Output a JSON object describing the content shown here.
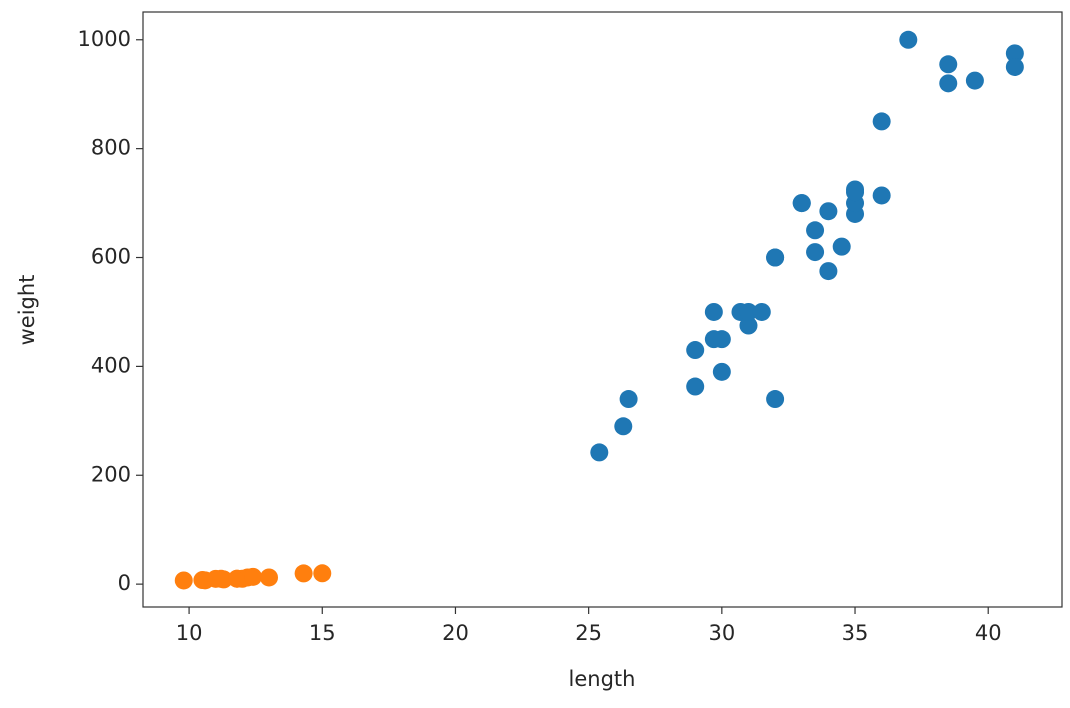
{
  "chart_data": {
    "type": "scatter",
    "x_label": "length",
    "y_label": "weight",
    "xlim": [
      8.27,
      42.77
    ],
    "ylim": [
      -42,
      1051
    ],
    "xticks": [
      10,
      15,
      20,
      25,
      30,
      35,
      40
    ],
    "yticks": [
      0,
      200,
      400,
      600,
      800,
      1000
    ],
    "series": [
      {
        "color": "#1f77b4",
        "x": [
          25.4,
          26.3,
          26.5,
          29.0,
          29.0,
          29.7,
          29.7,
          30.0,
          30.0,
          30.7,
          31.0,
          31.0,
          31.5,
          32.0,
          32.0,
          32.0,
          33.0,
          33.0,
          33.5,
          33.5,
          34.0,
          34.0,
          34.5,
          35.0,
          35.0,
          35.0,
          35.0,
          36.0,
          36.0,
          37.0,
          38.5,
          38.5,
          39.5,
          41.0,
          41.0
        ],
        "values": [
          242,
          290,
          340,
          363,
          430,
          450,
          500,
          390,
          450,
          500,
          475,
          500,
          500,
          340,
          600,
          600,
          700,
          700,
          610,
          650,
          575,
          685,
          620,
          680,
          700,
          725,
          720,
          714,
          850,
          1000,
          920,
          955,
          925,
          975,
          950
        ]
      },
      {
        "color": "#ff7f0e",
        "x": [
          9.8,
          10.5,
          10.6,
          11.0,
          11.2,
          11.3,
          11.8,
          11.8,
          12.0,
          12.2,
          12.4,
          13.0,
          14.3,
          15.0
        ],
        "values": [
          6.7,
          7.5,
          7.0,
          9.7,
          9.8,
          8.7,
          10.0,
          9.9,
          9.8,
          12.2,
          13.4,
          12.2,
          19.7,
          19.9
        ]
      }
    ]
  }
}
